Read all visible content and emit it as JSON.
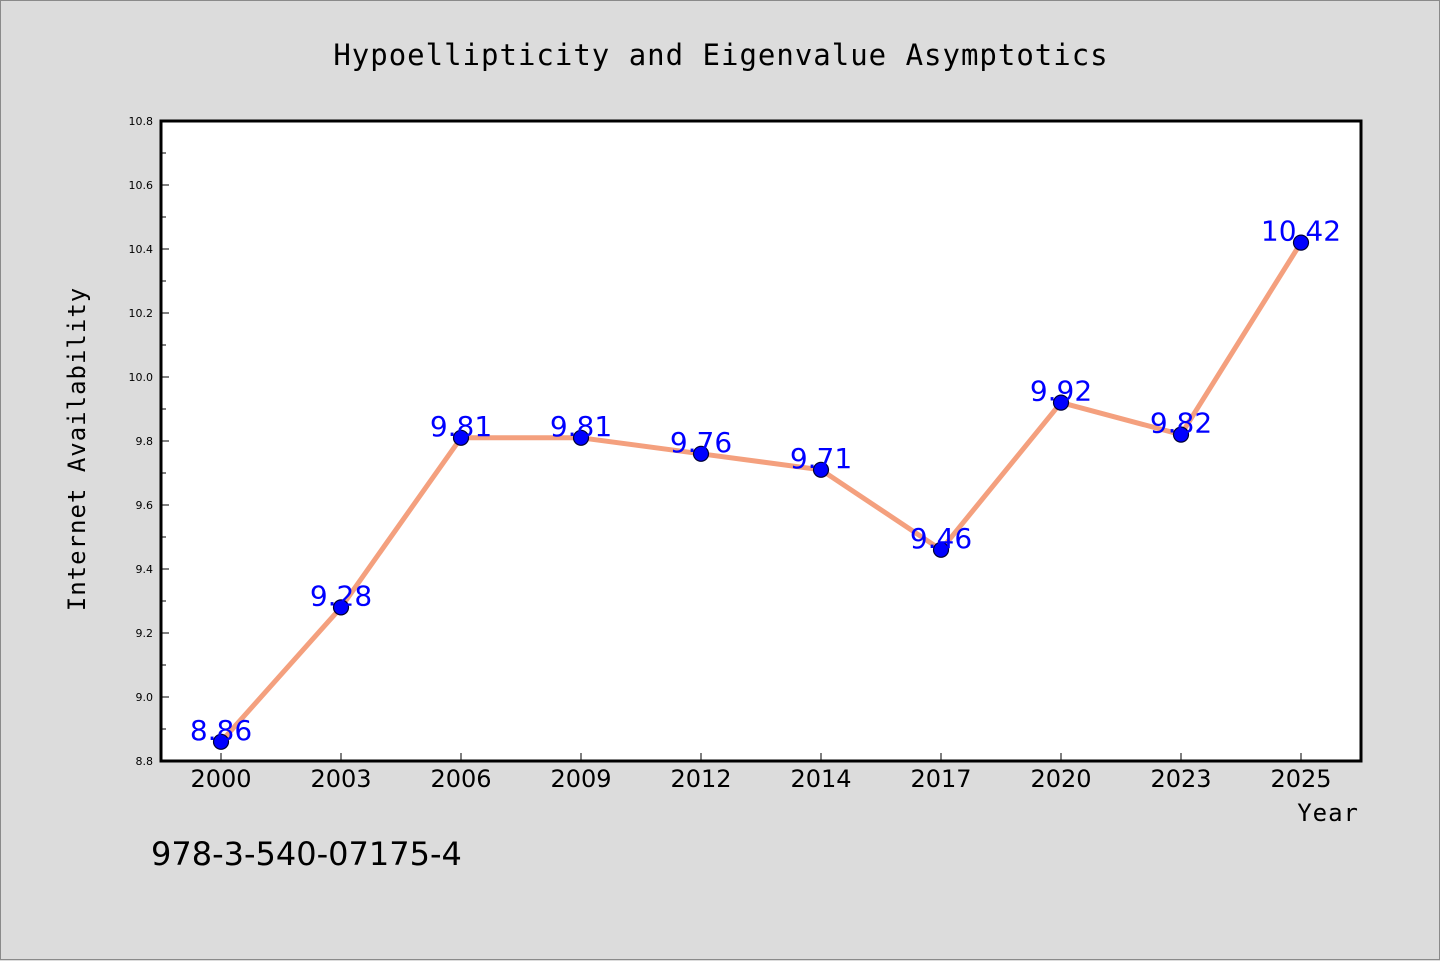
{
  "chart_data": {
    "type": "line",
    "title": "Hypoellipticity and Eigenvalue Asymptotics",
    "xlabel": "Year",
    "ylabel": "Internet Availability",
    "categories": [
      "2000",
      "2003",
      "2006",
      "2009",
      "2012",
      "2014",
      "2017",
      "2020",
      "2023",
      "2025"
    ],
    "values": [
      8.86,
      9.28,
      9.81,
      9.81,
      9.76,
      9.71,
      9.46,
      9.92,
      9.82,
      10.42
    ],
    "data_labels": [
      "8.86",
      "9.28",
      "9.81",
      "9.81",
      "9.76",
      "9.71",
      "9.46",
      "9.92",
      "9.82",
      "10.42"
    ],
    "ylim": [
      8.8,
      10.8
    ],
    "yticks": [
      "8.8",
      "9.0",
      "9.2",
      "9.4",
      "9.6",
      "9.8",
      "10.0",
      "10.2",
      "10.4",
      "10.6",
      "10.8"
    ],
    "grid": false,
    "legend": "none",
    "colors": {
      "line": "#f4a07e",
      "marker_fill": "#0000ff",
      "marker_edge": "#000033",
      "data_label": "#0000ff",
      "plot_background": "#ffffff",
      "figure_background": "#dcdcdc"
    }
  },
  "footnote": "978-3-540-07175-4"
}
